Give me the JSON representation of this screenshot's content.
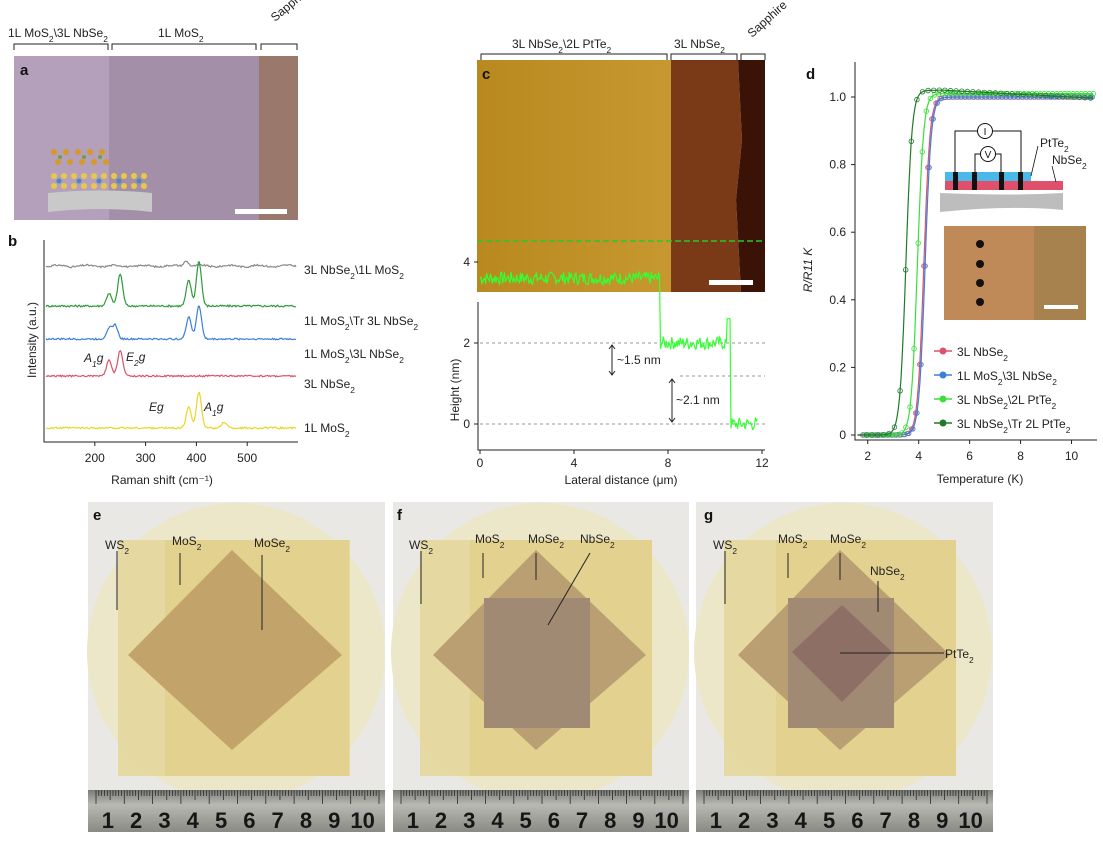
{
  "panels": {
    "a": {
      "label": "a",
      "top_labels": [
        "1L MoS₂\\3L NbSe₂",
        "1L MoS₂",
        "Sapphire"
      ]
    },
    "b": {
      "label": "b",
      "ylabel": "Intensity (a.u.)",
      "xlabel": "Raman shift (cm⁻¹)",
      "xticks": [
        "200",
        "300",
        "400",
        "500"
      ],
      "curve_labels": [
        "3L NbSe₂\\1L MoS₂",
        "1L MoS₂\\Tr 3L NbSe₂",
        "1L MoS₂\\3L NbSe₂",
        "3L NbSe₂",
        "1L MoS₂"
      ],
      "peak_labels": [
        "A₁g",
        "E₂g",
        "Eg",
        "A₁g"
      ],
      "colors": [
        "#8a8a8a",
        "#2e9a3a",
        "#3b7fd6",
        "#e0506a",
        "#e8d62a"
      ]
    },
    "c": {
      "label": "c",
      "top_labels": [
        "3L NbSe₂\\2L PtTe₂",
        "3L NbSe₂",
        "Sapphire"
      ],
      "profile": {
        "ylabel": "Height (nm)",
        "xlabel": "Lateral distance (μm)",
        "xticks": [
          "0",
          "4",
          "8",
          "12"
        ],
        "yticks": [
          "0",
          "2",
          "4"
        ],
        "annotations": [
          "~1.5 nm",
          "~2.1 nm"
        ],
        "color": "#33ff33"
      }
    },
    "d": {
      "label": "d",
      "ylabel": "R/R11 K",
      "xlabel": "Temperature (K)",
      "xticks": [
        "2",
        "4",
        "6",
        "8",
        "10"
      ],
      "yticks": [
        "0",
        "0.2",
        "0.4",
        "0.6",
        "0.8",
        "1.0"
      ],
      "inset_labels": [
        "I",
        "V",
        "PtTe₂",
        "NbSe₂"
      ],
      "legend": [
        {
          "label": "3L NbSe₂",
          "color": "#e0506a"
        },
        {
          "label": "1L MoS₂\\3L NbSe₂",
          "color": "#3b7fd6"
        },
        {
          "label": "3L NbSe₂\\2L PtTe₂",
          "color": "#39e039"
        },
        {
          "label": "3L NbSe₂\\Tr 2L PtTe₂",
          "color": "#1f7a2a"
        }
      ]
    },
    "e": {
      "label": "e",
      "labels": [
        "WS₂",
        "MoS₂",
        "MoSe₂"
      ]
    },
    "f": {
      "label": "f",
      "labels": [
        "WS₂",
        "MoS₂",
        "MoSe₂",
        "NbSe₂"
      ]
    },
    "g": {
      "label": "g",
      "labels": [
        "WS₂",
        "MoS₂",
        "MoSe₂",
        "NbSe₂",
        "PtTe₂"
      ]
    },
    "ruler_e": [
      "1",
      "2",
      "3",
      "4",
      "5",
      "6",
      "7",
      "8",
      "9",
      "10"
    ],
    "ruler_f": [
      "1",
      "2",
      "3",
      "4",
      "5",
      "6",
      "7",
      "8",
      "9",
      "10"
    ],
    "ruler_g": [
      "1",
      "2",
      "3",
      "4",
      "5",
      "6",
      "7",
      "8",
      "9",
      "10"
    ]
  },
  "chart_data": [
    {
      "type": "line",
      "title": "b",
      "xlabel": "Raman shift (cm⁻¹)",
      "ylabel": "Intensity (a.u.)",
      "xlim": [
        100,
        600
      ],
      "series": [
        {
          "name": "3L NbSe₂\\1L MoS₂",
          "peaks": [
            [
              380,
              0.2
            ]
          ]
        },
        {
          "name": "1L MoS₂\\Tr 3L NbSe₂",
          "peaks": [
            [
              228,
              0.4
            ],
            [
              250,
              1.0
            ],
            [
              385,
              0.8
            ],
            [
              405,
              1.4
            ]
          ]
        },
        {
          "name": "1L MoS₂\\3L NbSe₂",
          "peaks": [
            [
              228,
              0.4
            ],
            [
              240,
              0.5
            ],
            [
              385,
              0.8
            ],
            [
              405,
              1.2
            ]
          ]
        },
        {
          "name": "3L NbSe₂",
          "peaks": [
            [
              228,
              0.6
            ],
            [
              250,
              1.0
            ]
          ]
        },
        {
          "name": "1L MoS₂",
          "peaks": [
            [
              385,
              0.7
            ],
            [
              405,
              1.2
            ],
            [
              455,
              0.2
            ]
          ]
        }
      ]
    },
    {
      "type": "line",
      "title": "c profile",
      "xlabel": "Lateral distance (μm)",
      "ylabel": "Height (nm)",
      "xlim": [
        0,
        12
      ],
      "ylim": [
        -0.5,
        5
      ],
      "x": [
        0,
        7.6,
        7.7,
        10.6,
        10.7,
        11.8
      ],
      "y": [
        3.6,
        3.6,
        2.0,
        2.0,
        0.0,
        0.0
      ]
    },
    {
      "type": "line",
      "title": "d",
      "xlabel": "Temperature (K)",
      "ylabel": "R/R11 K",
      "xlim": [
        1.5,
        11
      ],
      "ylim": [
        0,
        1.1
      ],
      "series": [
        {
          "name": "3L NbSe₂",
          "tc": 4.2,
          "max": 1.0
        },
        {
          "name": "1L MoS₂\\3L NbSe₂",
          "tc": 4.25,
          "max": 1.0
        },
        {
          "name": "3L NbSe₂\\2L PtTe₂",
          "tc": 3.95,
          "max": 1.01
        },
        {
          "name": "3L NbSe₂\\Tr 2L PtTe₂",
          "tc": 3.5,
          "max": 1.02
        }
      ]
    }
  ]
}
